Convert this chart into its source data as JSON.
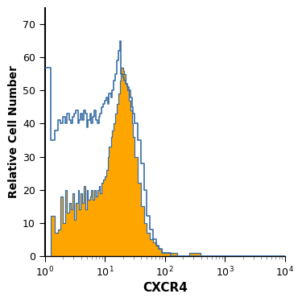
{
  "title": "",
  "xlabel": "CXCR4",
  "ylabel": "Relative Cell Number",
  "xlim_log": [
    0,
    4
  ],
  "ylim": [
    0,
    75
  ],
  "yticks": [
    0,
    10,
    20,
    30,
    40,
    50,
    60,
    70
  ],
  "orange_color": "#FFA500",
  "blue_color": "#3a6ea5",
  "background_color": "#ffffff",
  "blue_linewidth": 1.2,
  "blue_bins_log": [
    0.0,
    0.1,
    0.17,
    0.22,
    0.26,
    0.3,
    0.34,
    0.37,
    0.4,
    0.43,
    0.46,
    0.49,
    0.52,
    0.55,
    0.57,
    0.6,
    0.62,
    0.65,
    0.67,
    0.7,
    0.72,
    0.75,
    0.77,
    0.8,
    0.82,
    0.85,
    0.87,
    0.9,
    0.92,
    0.95,
    0.97,
    1.0,
    1.02,
    1.05,
    1.07,
    1.1,
    1.12,
    1.15,
    1.17,
    1.2,
    1.22,
    1.25,
    1.27,
    1.3,
    1.32,
    1.35,
    1.37,
    1.4,
    1.42,
    1.45,
    1.47,
    1.5,
    1.55,
    1.6,
    1.65,
    1.7,
    1.75,
    1.8,
    1.85,
    1.9,
    1.95,
    2.0,
    2.1,
    2.2,
    2.3,
    2.4,
    2.5,
    2.6,
    2.7,
    2.8,
    2.9,
    3.0,
    4.0
  ],
  "blue_heights": [
    57,
    35,
    38,
    41,
    40,
    42,
    40,
    43,
    41,
    40,
    42,
    43,
    44,
    40,
    41,
    43,
    41,
    44,
    43,
    39,
    41,
    43,
    40,
    42,
    44,
    41,
    40,
    42,
    43,
    45,
    46,
    47,
    48,
    46,
    49,
    48,
    50,
    53,
    55,
    59,
    62,
    65,
    55,
    54,
    53,
    52,
    51,
    50,
    48,
    45,
    43,
    40,
    35,
    28,
    20,
    12,
    8,
    5,
    3,
    2,
    1,
    1,
    0,
    0,
    0,
    0,
    0,
    0,
    0,
    0,
    0,
    0,
    0
  ],
  "orange_bins_log": [
    0.0,
    0.1,
    0.17,
    0.22,
    0.26,
    0.3,
    0.34,
    0.37,
    0.4,
    0.43,
    0.46,
    0.49,
    0.52,
    0.55,
    0.57,
    0.6,
    0.62,
    0.65,
    0.67,
    0.7,
    0.72,
    0.75,
    0.77,
    0.8,
    0.82,
    0.85,
    0.87,
    0.9,
    0.92,
    0.95,
    0.97,
    1.0,
    1.02,
    1.05,
    1.07,
    1.1,
    1.12,
    1.15,
    1.17,
    1.2,
    1.22,
    1.25,
    1.27,
    1.3,
    1.32,
    1.35,
    1.37,
    1.4,
    1.42,
    1.45,
    1.47,
    1.5,
    1.55,
    1.6,
    1.65,
    1.7,
    1.75,
    1.8,
    1.85,
    1.9,
    1.95,
    2.0,
    2.1,
    2.2,
    2.3,
    2.4,
    2.5,
    2.6,
    2.7,
    2.8,
    2.9,
    3.0,
    4.0
  ],
  "orange_heights": [
    0,
    12,
    7,
    8,
    18,
    10,
    20,
    13,
    16,
    14,
    19,
    11,
    16,
    20,
    14,
    19,
    16,
    21,
    14,
    20,
    17,
    18,
    20,
    17,
    20,
    18,
    20,
    21,
    19,
    22,
    23,
    24,
    26,
    30,
    33,
    36,
    38,
    40,
    43,
    46,
    49,
    53,
    57,
    56,
    55,
    52,
    50,
    47,
    44,
    40,
    36,
    30,
    22,
    15,
    10,
    7,
    5,
    4,
    3,
    2,
    1,
    1,
    1,
    0,
    0,
    1,
    1,
    0,
    0,
    0,
    0,
    0,
    0
  ]
}
